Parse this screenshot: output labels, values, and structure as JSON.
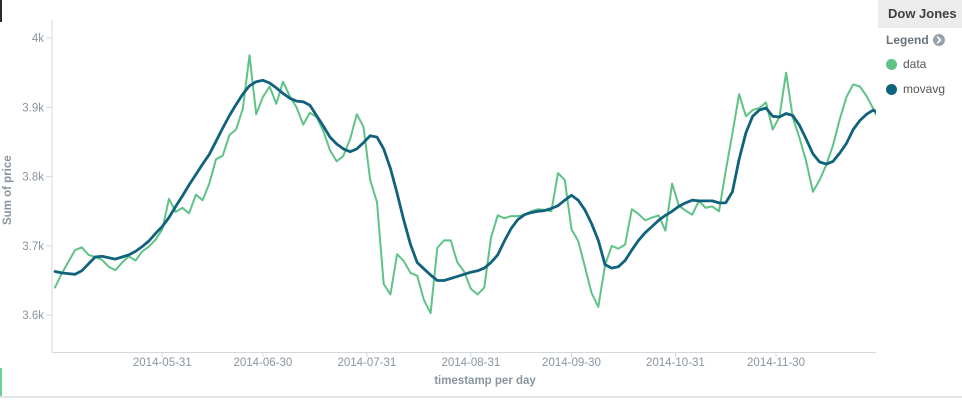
{
  "header": {
    "title": "Dow Jones"
  },
  "legend": {
    "label": "Legend",
    "items": [
      {
        "label": "data",
        "color": "#5fc387"
      },
      {
        "label": "movavg",
        "color": "#10627d"
      }
    ]
  },
  "colors": {
    "header_bg": "#ececec",
    "axis_line": "#d3d7db",
    "tick_text": "#8a95a0",
    "edge_artifact_dark": "#2b2b2b",
    "edge_artifact_green": "#6fcf97"
  },
  "chart_data": {
    "type": "line",
    "title": "Dow Jones",
    "xlabel": "timestamp per day",
    "ylabel": "Sum of price",
    "grid": false,
    "legend_position": "right",
    "x_start": "2014-04-29",
    "x_interval_days": 2,
    "x_tick_labels": [
      "2014-05-31",
      "2014-06-30",
      "2014-07-31",
      "2014-08-31",
      "2014-09-30",
      "2014-10-31",
      "2014-11-30"
    ],
    "x_tick_day_offsets": [
      32,
      62,
      93,
      124,
      154,
      185,
      215
    ],
    "y_ticks": [
      {
        "label": "4k",
        "value": 4000
      },
      {
        "label": "3.9k",
        "value": 3900
      },
      {
        "label": "3.8k",
        "value": 3800
      },
      {
        "label": "3.7k",
        "value": 3700
      },
      {
        "label": "3.6k",
        "value": 3600
      }
    ],
    "y_axis_range": [
      3547,
      4026
    ],
    "series": [
      {
        "name": "data",
        "color": "#5fc387",
        "width": 2,
        "values": [
          3640,
          3660,
          3677,
          3694,
          3698,
          3687,
          3684,
          3680,
          3670,
          3665,
          3676,
          3685,
          3679,
          3692,
          3699,
          3709,
          3724,
          3768,
          3749,
          3755,
          3747,
          3774,
          3766,
          3790,
          3825,
          3830,
          3860,
          3868,
          3898,
          3975,
          3890,
          3915,
          3930,
          3905,
          3937,
          3916,
          3900,
          3875,
          3892,
          3886,
          3866,
          3838,
          3822,
          3830,
          3854,
          3890,
          3872,
          3795,
          3763,
          3645,
          3630,
          3688,
          3678,
          3661,
          3657,
          3622,
          3603,
          3697,
          3708,
          3708,
          3676,
          3663,
          3638,
          3630,
          3640,
          3712,
          3744,
          3740,
          3743,
          3743,
          3745,
          3750,
          3753,
          3752,
          3750,
          3805,
          3795,
          3724,
          3707,
          3670,
          3632,
          3612,
          3672,
          3700,
          3696,
          3702,
          3753,
          3746,
          3737,
          3741,
          3744,
          3722,
          3790,
          3758,
          3751,
          3745,
          3765,
          3755,
          3757,
          3750,
          3808,
          3862,
          3919,
          3887,
          3896,
          3899,
          3907,
          3868,
          3886,
          3950,
          3885,
          3856,
          3822,
          3778,
          3795,
          3817,
          3845,
          3883,
          3915,
          3933,
          3930,
          3916,
          3898,
          3877
        ]
      },
      {
        "name": "movavg",
        "color": "#10627d",
        "width": 2.8,
        "values": [
          3663,
          3661,
          3660,
          3659,
          3664,
          3674,
          3684,
          3685,
          3683,
          3681,
          3684,
          3687,
          3692,
          3699,
          3707,
          3718,
          3728,
          3741,
          3757,
          3772,
          3788,
          3803,
          3818,
          3832,
          3851,
          3870,
          3888,
          3904,
          3919,
          3931,
          3937,
          3939,
          3935,
          3928,
          3920,
          3913,
          3909,
          3908,
          3903,
          3888,
          3873,
          3857,
          3847,
          3840,
          3836,
          3840,
          3849,
          3859,
          3857,
          3840,
          3812,
          3776,
          3737,
          3702,
          3676,
          3667,
          3658,
          3650,
          3650,
          3653,
          3656,
          3659,
          3662,
          3664,
          3668,
          3676,
          3687,
          3707,
          3725,
          3738,
          3745,
          3748,
          3750,
          3751,
          3754,
          3758,
          3766,
          3773,
          3766,
          3752,
          3732,
          3708,
          3673,
          3668,
          3670,
          3679,
          3694,
          3708,
          3719,
          3728,
          3737,
          3744,
          3750,
          3757,
          3762,
          3766,
          3765,
          3765,
          3765,
          3762,
          3762,
          3778,
          3825,
          3863,
          3887,
          3896,
          3899,
          3887,
          3886,
          3891,
          3888,
          3874,
          3854,
          3833,
          3821,
          3818,
          3822,
          3834,
          3848,
          3868,
          3881,
          3890,
          3896,
          3890
        ]
      }
    ]
  }
}
